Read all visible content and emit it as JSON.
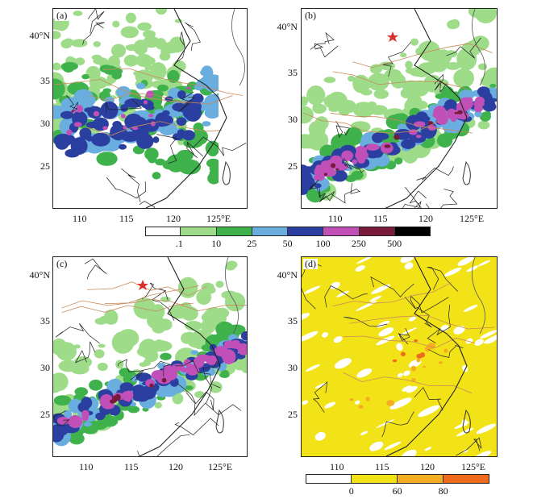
{
  "panels": {
    "a": {
      "label": "(a)"
    },
    "b": {
      "label": "(b)"
    },
    "c": {
      "label": "(c)"
    },
    "d": {
      "label": "(d)"
    }
  },
  "axes": {
    "lat_ticks": [
      "40°N",
      "35",
      "30",
      "25"
    ],
    "lon_ticks": [
      "110",
      "115",
      "120",
      "125°E"
    ]
  },
  "precip_colorbar": {
    "labels": [
      ".1",
      "10",
      "25",
      "50",
      "100",
      "250",
      "500"
    ],
    "colors": [
      "#ffffff",
      "#9edc8a",
      "#3fb24c",
      "#6aaee0",
      "#2b3fa0",
      "#c050b8",
      "#7a1a3a",
      "#000000"
    ]
  },
  "freq_colorbar": {
    "labels": [
      "0",
      "60",
      "80"
    ],
    "colors": [
      "#ffffff",
      "#f2e318",
      "#f5ae22",
      "#ee6a1d"
    ]
  },
  "colors": {
    "province_border": "#1f1f1f",
    "river": "#c98a5a",
    "coast": "#555555",
    "station_marker": "#d9312b"
  }
}
